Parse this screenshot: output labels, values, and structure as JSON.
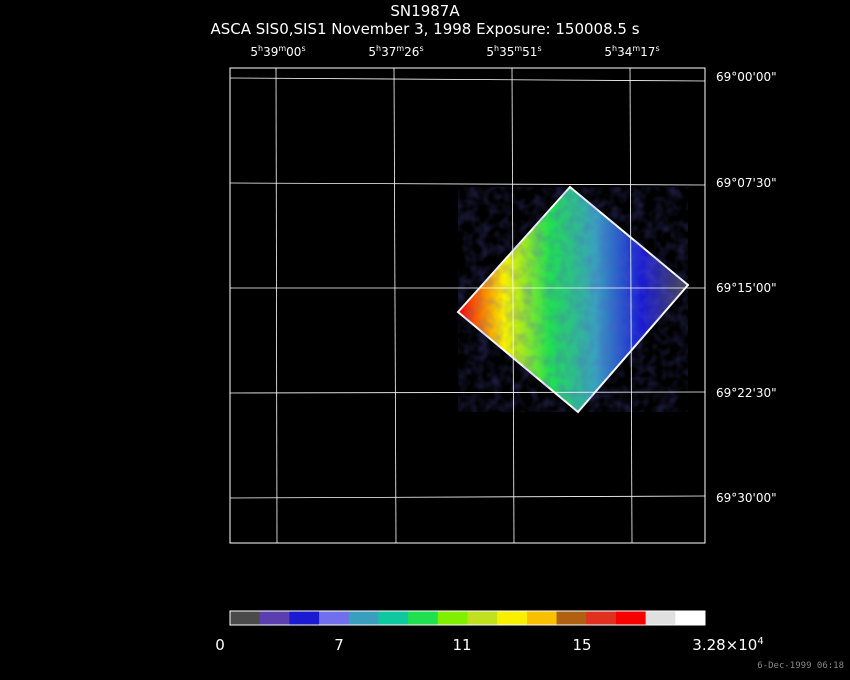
{
  "title": "SN1987A",
  "subtitle": "ASCA SIS0,SIS1 November 3, 1998 Exposure: 150008.5 s",
  "ra_ticks": [
    {
      "h": "5",
      "m": "39",
      "s": "00"
    },
    {
      "h": "5",
      "m": "37",
      "s": "26"
    },
    {
      "h": "5",
      "m": "35",
      "s": "51"
    },
    {
      "h": "5",
      "m": "34",
      "s": "17"
    }
  ],
  "dec_ticks": [
    "69°00'00\"",
    "69°07'30\"",
    "69°15'00\"",
    "69°22'30\"",
    "69°30'00\""
  ],
  "colorbar": {
    "colors": [
      "#4a4a4a",
      "#5b3fb0",
      "#1a1ad2",
      "#7070ee",
      "#3a9fbf",
      "#10c8a0",
      "#20e050",
      "#80f000",
      "#c0e020",
      "#f8f000",
      "#f8c000",
      "#b06010",
      "#e03020",
      "#f80000",
      "#e0e0e0",
      "#ffffff"
    ],
    "labels": [
      {
        "text": "0",
        "sup": ""
      },
      {
        "text": "7",
        "sup": ""
      },
      {
        "text": "11",
        "sup": ""
      },
      {
        "text": "15",
        "sup": ""
      },
      {
        "text": "3.28×10",
        "sup": "4"
      }
    ]
  },
  "timestamp": "6-Dec-1999 06:18"
}
